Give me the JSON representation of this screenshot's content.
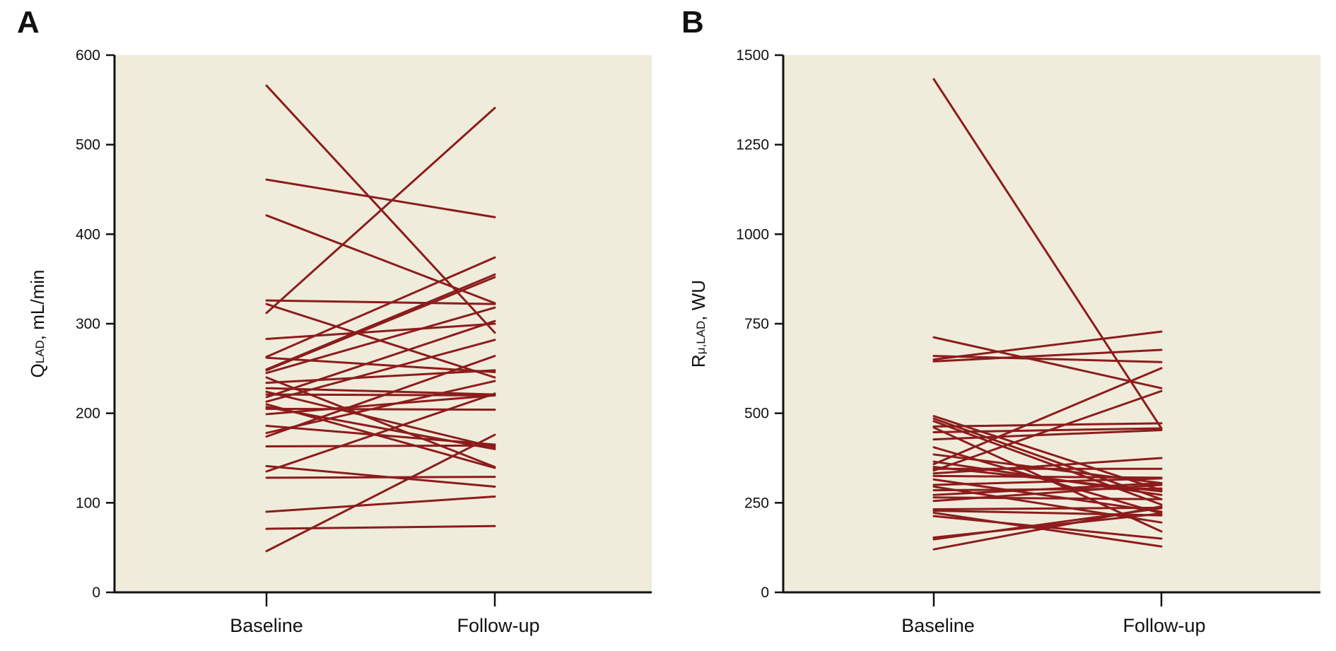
{
  "colors": {
    "plot_background": "#f0ecdc",
    "line": "#8c1c1c",
    "axis": "#111111"
  },
  "chart_data": [
    {
      "type": "line",
      "panel_label": "A",
      "title": "",
      "ylabel_main": "Q",
      "ylabel_sub": "LAD",
      "ylabel_rest": ", mL/min",
      "xlabel": "",
      "categories": [
        "Baseline",
        "Follow-up"
      ],
      "ylim": [
        0,
        600
      ],
      "yticks": [
        0,
        100,
        200,
        300,
        400,
        500,
        600
      ],
      "grid": false,
      "series": [
        {
          "values": [
            566,
            290
          ]
        },
        {
          "values": [
            461,
            419
          ]
        },
        {
          "values": [
            421,
            323
          ]
        },
        {
          "values": [
            312,
            541
          ]
        },
        {
          "values": [
            326,
            322
          ]
        },
        {
          "values": [
            322,
            240
          ]
        },
        {
          "values": [
            283,
            300
          ]
        },
        {
          "values": [
            263,
            374
          ]
        },
        {
          "values": [
            262,
            246
          ]
        },
        {
          "values": [
            249,
            355
          ]
        },
        {
          "values": [
            248,
            352
          ]
        },
        {
          "values": [
            245,
            318
          ]
        },
        {
          "values": [
            240,
            140
          ]
        },
        {
          "values": [
            234,
            248
          ]
        },
        {
          "values": [
            228,
            221
          ]
        },
        {
          "values": [
            224,
            162
          ]
        },
        {
          "values": [
            221,
            220
          ]
        },
        {
          "values": [
            218,
            303
          ]
        },
        {
          "values": [
            213,
            282
          ]
        },
        {
          "values": [
            210,
            139
          ]
        },
        {
          "values": [
            207,
            160
          ]
        },
        {
          "values": [
            205,
            204
          ]
        },
        {
          "values": [
            199,
            220
          ]
        },
        {
          "values": [
            186,
            165
          ]
        },
        {
          "values": [
            178,
            236
          ]
        },
        {
          "values": [
            174,
            264
          ]
        },
        {
          "values": [
            163,
            164
          ]
        },
        {
          "values": [
            141,
            118
          ]
        },
        {
          "values": [
            135,
            222
          ]
        },
        {
          "values": [
            128,
            129
          ]
        },
        {
          "values": [
            90,
            107
          ]
        },
        {
          "values": [
            71,
            74
          ]
        },
        {
          "values": [
            46,
            176
          ]
        }
      ]
    },
    {
      "type": "line",
      "panel_label": "B",
      "title": "",
      "ylabel_main": "R",
      "ylabel_sub": "μ,LAD",
      "ylabel_rest": ", WU",
      "xlabel": "",
      "categories": [
        "Baseline",
        "Follow-up"
      ],
      "ylim": [
        0,
        1500
      ],
      "yticks": [
        0,
        250,
        500,
        750,
        1000,
        1250,
        1500
      ],
      "grid": false,
      "series": [
        {
          "values": [
            1433,
            458
          ]
        },
        {
          "values": [
            712,
            570
          ]
        },
        {
          "values": [
            660,
            643
          ]
        },
        {
          "values": [
            650,
            728
          ]
        },
        {
          "values": [
            645,
            677
          ]
        },
        {
          "values": [
            492,
            285
          ]
        },
        {
          "values": [
            485,
            260
          ]
        },
        {
          "values": [
            478,
            245
          ]
        },
        {
          "values": [
            463,
            472
          ]
        },
        {
          "values": [
            460,
            170
          ]
        },
        {
          "values": [
            447,
            458
          ]
        },
        {
          "values": [
            427,
            453
          ]
        },
        {
          "values": [
            405,
            220
          ]
        },
        {
          "values": [
            385,
            305
          ]
        },
        {
          "values": [
            365,
            272
          ]
        },
        {
          "values": [
            358,
            626
          ]
        },
        {
          "values": [
            350,
            282
          ]
        },
        {
          "values": [
            345,
            345
          ]
        },
        {
          "values": [
            340,
            562
          ]
        },
        {
          "values": [
            332,
            375
          ]
        },
        {
          "values": [
            325,
            320
          ]
        },
        {
          "values": [
            315,
            225
          ]
        },
        {
          "values": [
            300,
            318
          ]
        },
        {
          "values": [
            295,
            195
          ]
        },
        {
          "values": [
            285,
            290
          ]
        },
        {
          "values": [
            272,
            305
          ]
        },
        {
          "values": [
            265,
            260
          ]
        },
        {
          "values": [
            255,
            300
          ]
        },
        {
          "values": [
            232,
            236
          ]
        },
        {
          "values": [
            228,
            215
          ]
        },
        {
          "values": [
            222,
            128
          ]
        },
        {
          "values": [
            213,
            150
          ]
        },
        {
          "values": [
            153,
            220
          ]
        },
        {
          "values": [
            148,
            235
          ]
        },
        {
          "values": [
            120,
            240
          ]
        }
      ]
    }
  ]
}
